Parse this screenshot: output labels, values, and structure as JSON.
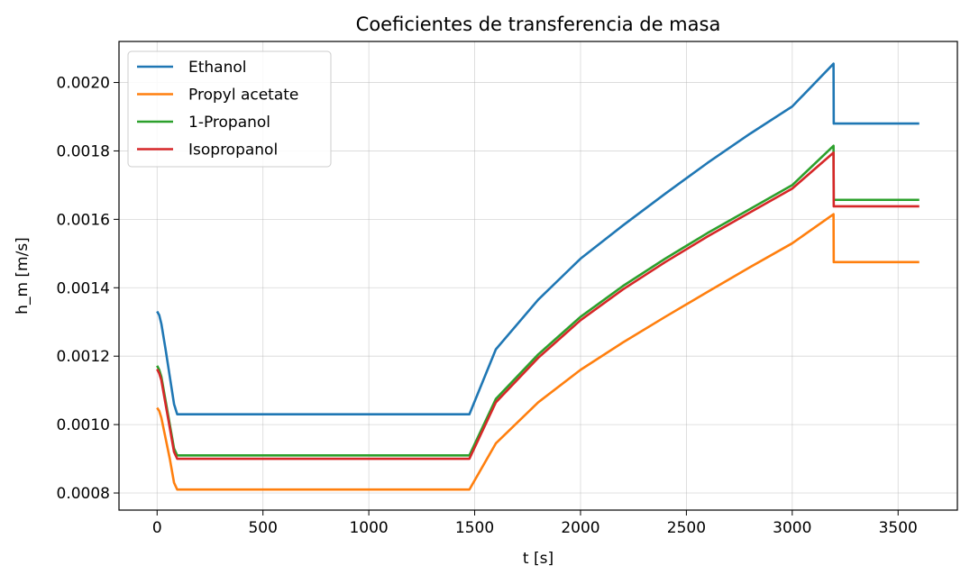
{
  "chart_data": {
    "type": "line",
    "title": "Coeficientes de transferencia de masa",
    "xlabel": "t [s]",
    "ylabel": "h_m [m/s]",
    "xlim": [
      -180,
      3780
    ],
    "ylim": [
      0.00075,
      0.00212
    ],
    "xticks": [
      0,
      500,
      1000,
      1500,
      2000,
      2500,
      3000,
      3500
    ],
    "xtick_labels": [
      "0",
      "500",
      "1000",
      "1500",
      "2000",
      "2500",
      "3000",
      "3500"
    ],
    "yticks": [
      0.0008,
      0.001,
      0.0012,
      0.0014,
      0.0016,
      0.0018,
      0.002
    ],
    "ytick_labels": [
      "0.0008",
      "0.0010",
      "0.0012",
      "0.0014",
      "0.0016",
      "0.0018",
      "0.0020"
    ],
    "grid": true,
    "legend_position": "upper-left",
    "series": [
      {
        "name": "Ethanol",
        "color": "#1f77b4",
        "x": [
          0,
          10,
          20,
          40,
          60,
          80,
          95,
          200,
          500,
          1000,
          1475,
          1600,
          1800,
          2000,
          2200,
          2400,
          2600,
          2800,
          3000,
          3195,
          3196,
          3600
        ],
        "y": [
          0.001331,
          0.00132,
          0.001295,
          0.00122,
          0.00114,
          0.00106,
          0.00103,
          0.00103,
          0.00103,
          0.00103,
          0.00103,
          0.00122,
          0.001365,
          0.001485,
          0.001582,
          0.001675,
          0.001765,
          0.00185,
          0.00193,
          0.002055,
          0.00188,
          0.00188
        ]
      },
      {
        "name": "Propyl acetate",
        "color": "#ff7f0e",
        "x": [
          0,
          10,
          20,
          40,
          60,
          80,
          95,
          200,
          500,
          1000,
          1475,
          1600,
          1800,
          2000,
          2200,
          2400,
          2600,
          2800,
          3000,
          3195,
          3196,
          3600
        ],
        "y": [
          0.001049,
          0.00104,
          0.00102,
          0.00096,
          0.0009,
          0.00083,
          0.00081,
          0.00081,
          0.00081,
          0.00081,
          0.00081,
          0.000945,
          0.001065,
          0.00116,
          0.00124,
          0.001315,
          0.001388,
          0.00146,
          0.00153,
          0.001615,
          0.001475,
          0.001475
        ]
      },
      {
        "name": "1-Propanol",
        "color": "#2ca02c",
        "x": [
          0,
          10,
          20,
          40,
          60,
          80,
          95,
          200,
          500,
          1000,
          1475,
          1600,
          1800,
          2000,
          2200,
          2400,
          2600,
          2800,
          3000,
          3195,
          3196,
          3600
        ],
        "y": [
          0.001172,
          0.00116,
          0.00114,
          0.00107,
          0.001,
          0.00093,
          0.00091,
          0.00091,
          0.00091,
          0.00091,
          0.00091,
          0.001075,
          0.001205,
          0.001315,
          0.001405,
          0.001485,
          0.00156,
          0.00163,
          0.0017,
          0.001815,
          0.001657,
          0.001657
        ]
      },
      {
        "name": "Isopropanol",
        "color": "#d62728",
        "x": [
          0,
          10,
          20,
          40,
          60,
          80,
          95,
          200,
          500,
          1000,
          1475,
          1600,
          1800,
          2000,
          2200,
          2400,
          2600,
          2800,
          3000,
          3195,
          3196,
          3600
        ],
        "y": [
          0.001162,
          0.00115,
          0.00113,
          0.00106,
          0.00099,
          0.00092,
          0.0009,
          0.0009,
          0.0009,
          0.0009,
          0.0009,
          0.001065,
          0.001195,
          0.001305,
          0.001395,
          0.001475,
          0.00155,
          0.00162,
          0.00169,
          0.001795,
          0.001638,
          0.001638
        ]
      }
    ]
  }
}
